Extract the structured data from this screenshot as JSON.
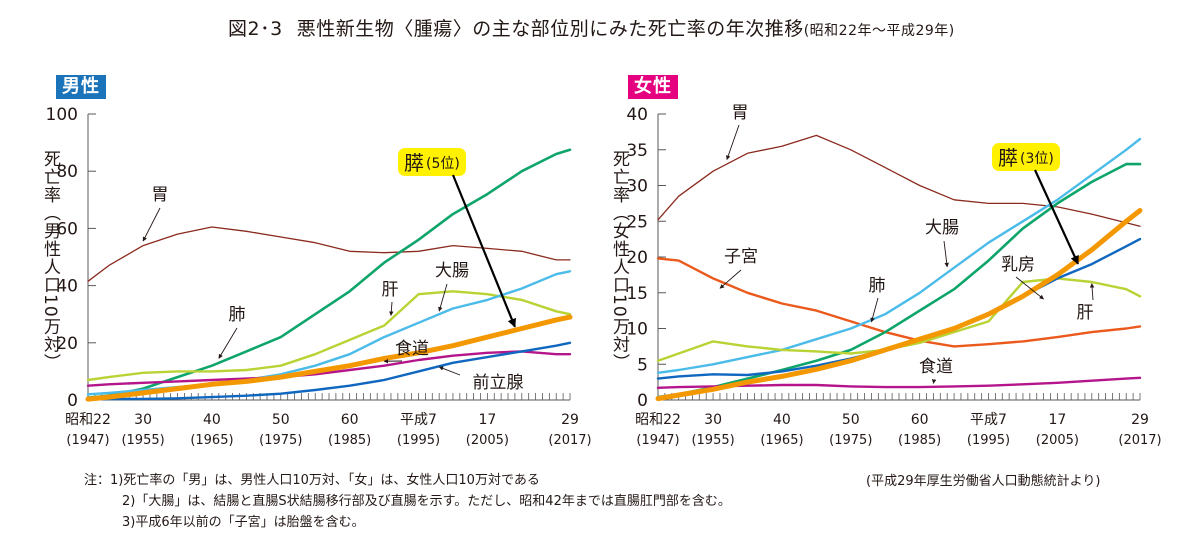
{
  "title": {
    "figure_no": "図2･3",
    "main": "悪性新生物〈腫瘍〉の主な部位別にみた死亡率の年次推移",
    "sub": "(昭和22年～平成29年)"
  },
  "notes": {
    "prefix": "注：",
    "lines": [
      "1)死亡率の「男」は、男性人口10万対、「女」は、女性人口10万対である",
      "2)「大腸」は、結腸と直腸S状結腸移行部及び直腸を示す。ただし、昭和42年までは直腸肛門部を含む。",
      "3)平成6年以前の「子宮」は胎盤を含む。"
    ]
  },
  "source": "(平成29年厚生労働省人口動態統計より)",
  "chart_data": [
    {
      "type": "line",
      "panel": "男性",
      "badge_color": "#1b73b9",
      "ylabel": "死亡率（男性人口10万対）",
      "xlabel": "",
      "ylim": [
        0,
        100
      ],
      "yticks": [
        0,
        20,
        40,
        60,
        80,
        100
      ],
      "xlim": [
        1947,
        2017
      ],
      "xticks": [
        {
          "year": 1947,
          "era": "昭和22",
          "label": "(1947)"
        },
        {
          "year": 1955,
          "era": "30",
          "label": "(1955)"
        },
        {
          "year": 1965,
          "era": "40",
          "label": "(1965)"
        },
        {
          "year": 1975,
          "era": "50",
          "label": "(1975)"
        },
        {
          "year": 1985,
          "era": "60",
          "label": "(1985)"
        },
        {
          "year": 1995,
          "era": "平成7",
          "label": "(1995)"
        },
        {
          "year": 2005,
          "era": "17",
          "label": "(2005)"
        },
        {
          "year": 2017,
          "era": "29",
          "label": "(2017)"
        }
      ],
      "grid": false,
      "x": [
        1947,
        1950,
        1955,
        1960,
        1965,
        1970,
        1975,
        1980,
        1985,
        1990,
        1995,
        2000,
        2005,
        2010,
        2015,
        2017
      ],
      "series": [
        {
          "name": "胃",
          "color": "#8b2a1e",
          "width": 1.3,
          "values": [
            41.5,
            47,
            54,
            58,
            60.5,
            59,
            57,
            55,
            52,
            51.5,
            52,
            54,
            53,
            52,
            49,
            49
          ]
        },
        {
          "name": "肺",
          "color": "#0ea56b",
          "width": 2.6,
          "values": [
            0.8,
            1.5,
            4,
            8,
            12,
            17,
            22,
            30,
            38,
            48,
            56,
            65,
            72,
            80,
            86,
            87.5
          ]
        },
        {
          "name": "肝",
          "color": "#b8d333",
          "width": 2.4,
          "values": [
            7,
            8,
            9.5,
            10,
            10,
            10.5,
            12,
            16,
            21,
            26,
            37,
            38,
            37,
            35,
            31,
            30
          ]
        },
        {
          "name": "大腸",
          "color": "#4bbbe9",
          "width": 2.4,
          "values": [
            2,
            2.5,
            3.5,
            4.5,
            5.5,
            7,
            9,
            12,
            16,
            22,
            27,
            32,
            35,
            39,
            44,
            45
          ]
        },
        {
          "name": "膵(5位)",
          "color": "#f39800",
          "width": 5,
          "highlight": true,
          "values": [
            0.3,
            1,
            2.5,
            4,
            5.5,
            6.5,
            8,
            10,
            12,
            14.5,
            16.5,
            19,
            22,
            25,
            28,
            29
          ]
        },
        {
          "name": "食道",
          "color": "#b5158b",
          "width": 2.4,
          "values": [
            5,
            5.5,
            6,
            6.5,
            7,
            7.5,
            8,
            9,
            10.5,
            12,
            14,
            15.5,
            16.5,
            17,
            16,
            16
          ]
        },
        {
          "name": "前立腺",
          "color": "#1067bf",
          "width": 2.4,
          "values": [
            0.2,
            0.3,
            0.4,
            0.6,
            1,
            1.5,
            2.2,
            3.5,
            5,
            7,
            10,
            13,
            15,
            17,
            19,
            20
          ]
        }
      ],
      "annotations": [
        {
          "text": "胃",
          "target": "胃"
        },
        {
          "text": "肺",
          "target": "肺"
        },
        {
          "text": "肝",
          "target": "肝"
        },
        {
          "text": "大腸",
          "target": "大腸"
        },
        {
          "text": "食道",
          "target": "食道"
        },
        {
          "text": "前立腺",
          "target": "前立腺"
        },
        {
          "text": "膵",
          "suffix": "(5位)",
          "target": "膵(5位)",
          "boxed": true,
          "box_color": "#fff100"
        }
      ]
    },
    {
      "type": "line",
      "panel": "女性",
      "badge_color": "#e4007f",
      "ylabel": "死亡率（女性人口10万対）",
      "xlabel": "",
      "ylim": [
        0,
        40
      ],
      "yticks": [
        0,
        5,
        10,
        15,
        20,
        25,
        30,
        35,
        40
      ],
      "xlim": [
        1947,
        2017
      ],
      "xticks": [
        {
          "year": 1947,
          "era": "昭和22",
          "label": "(1947)"
        },
        {
          "year": 1955,
          "era": "30",
          "label": "(1955)"
        },
        {
          "year": 1965,
          "era": "40",
          "label": "(1965)"
        },
        {
          "year": 1975,
          "era": "50",
          "label": "(1975)"
        },
        {
          "year": 1985,
          "era": "60",
          "label": "(1985)"
        },
        {
          "year": 1995,
          "era": "平成7",
          "label": "(1995)"
        },
        {
          "year": 2005,
          "era": "17",
          "label": "(2005)"
        },
        {
          "year": 2017,
          "era": "29",
          "label": "(2017)"
        }
      ],
      "grid": false,
      "x": [
        1947,
        1950,
        1955,
        1960,
        1965,
        1970,
        1975,
        1980,
        1985,
        1990,
        1995,
        2000,
        2005,
        2010,
        2015,
        2017
      ],
      "series": [
        {
          "name": "胃",
          "color": "#8b2a1e",
          "width": 1.3,
          "values": [
            25.2,
            28.5,
            32,
            34.5,
            35.5,
            37,
            35,
            32.5,
            30,
            28,
            27.5,
            27.5,
            27,
            26,
            24.8,
            24.3
          ]
        },
        {
          "name": "子宮",
          "color": "#eb5a1c",
          "width": 2.4,
          "values": [
            19.8,
            19.5,
            17,
            15,
            13.5,
            12.5,
            11,
            9.5,
            8.3,
            7.5,
            7.8,
            8.2,
            8.8,
            9.5,
            10,
            10.3
          ]
        },
        {
          "name": "大腸",
          "color": "#4bbbe9",
          "width": 2.4,
          "values": [
            3.8,
            4.2,
            5,
            6,
            7,
            8.5,
            10,
            12,
            15,
            18.5,
            22,
            25,
            28,
            31.5,
            35,
            36.5
          ]
        },
        {
          "name": "肺",
          "color": "#0ea56b",
          "width": 2.6,
          "values": [
            0.4,
            0.8,
            1.8,
            3,
            4.2,
            5.5,
            7,
            9.5,
            12.5,
            15.5,
            19.5,
            24,
            27.5,
            30.5,
            33,
            33
          ]
        },
        {
          "name": "肝",
          "color": "#b8d333",
          "width": 2.4,
          "values": [
            5.5,
            6.5,
            8.2,
            7.5,
            7,
            6.8,
            6.5,
            7,
            8,
            9.5,
            11,
            16.5,
            17,
            16.5,
            15.5,
            14.5
          ]
        },
        {
          "name": "乳房",
          "color": "#1067bf",
          "width": 2.4,
          "values": [
            3,
            3.3,
            3.6,
            3.5,
            4,
            4.8,
            5.8,
            7,
            8.5,
            10,
            12,
            14.5,
            17,
            19,
            21.5,
            22.5
          ]
        },
        {
          "name": "膵(3位)",
          "color": "#f39800",
          "width": 5,
          "highlight": true,
          "values": [
            0.2,
            0.7,
            1.5,
            2.5,
            3.3,
            4.3,
            5.5,
            7,
            8.5,
            10,
            12,
            14.5,
            17.5,
            21,
            25,
            26.5
          ]
        },
        {
          "name": "食道",
          "color": "#b5158b",
          "width": 2.4,
          "values": [
            1.7,
            1.8,
            1.9,
            2,
            2.1,
            2.1,
            1.9,
            1.8,
            1.8,
            1.9,
            2,
            2.2,
            2.4,
            2.7,
            3,
            3.1
          ]
        }
      ],
      "annotations": [
        {
          "text": "胃",
          "target": "胃"
        },
        {
          "text": "子宮",
          "target": "子宮"
        },
        {
          "text": "肺",
          "target": "肺"
        },
        {
          "text": "大腸",
          "target": "大腸"
        },
        {
          "text": "乳房",
          "target": "乳房"
        },
        {
          "text": "肝",
          "target": "肝"
        },
        {
          "text": "食道",
          "target": "食道"
        },
        {
          "text": "膵",
          "suffix": "(3位)",
          "target": "膵(3位)",
          "boxed": true,
          "box_color": "#fff100"
        }
      ]
    }
  ]
}
